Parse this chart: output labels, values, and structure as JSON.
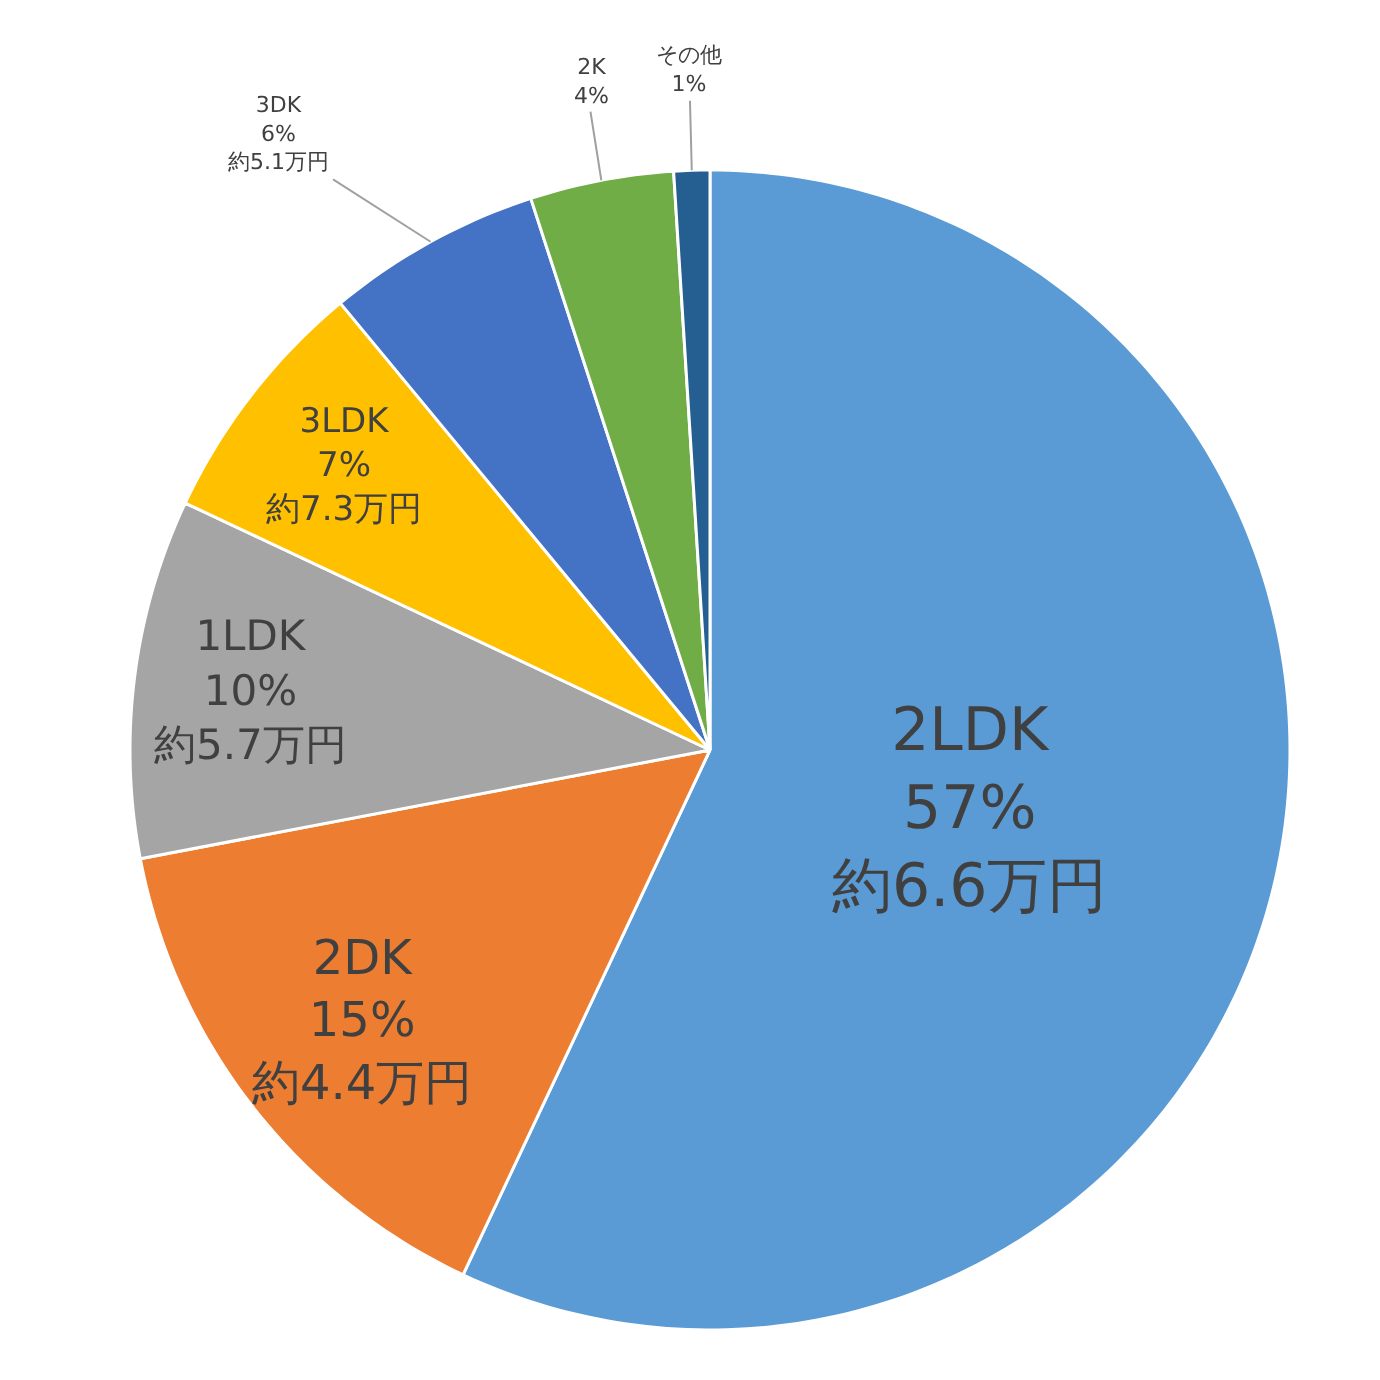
{
  "chart_data": {
    "type": "pie",
    "categories": [
      "2LDK",
      "2DK",
      "1LDK",
      "3LDK",
      "3DK",
      "2K",
      "その他"
    ],
    "values": [
      57,
      15,
      10,
      7,
      6,
      4,
      1
    ],
    "colors": [
      "#5b9bd5",
      "#ed7d31",
      "#a5a5a5",
      "#ffc000",
      "#4472c4",
      "#70ad47",
      "#255e91"
    ],
    "value_labels": [
      "57%\n約6.6万円",
      "15%\n約4.4万円",
      "10%\n約5.7万円",
      "7%\n約7.3万円",
      "6%\n約5.1万円",
      "4%",
      "1%"
    ],
    "legend": false
  }
}
